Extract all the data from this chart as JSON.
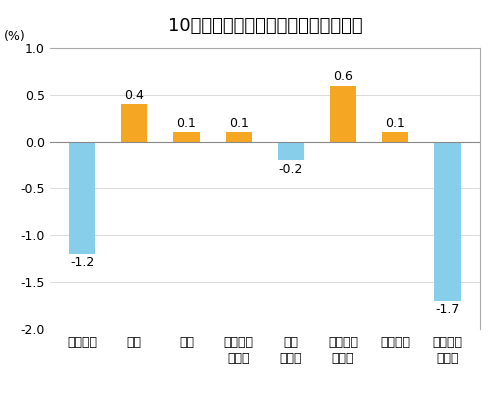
{
  "title": "10月份居民消费价格分类别环比涨跌幅",
  "ylabel": "(%)",
  "categories": [
    "食品烟酒",
    "衣着",
    "居住",
    "生活用品\n及服务",
    "交通\n和通信",
    "教育文化\n和娱乐",
    "医疗保健",
    "其他用品\n和服务"
  ],
  "values": [
    -1.2,
    0.4,
    0.1,
    0.1,
    -0.2,
    0.6,
    0.1,
    -1.7
  ],
  "bar_color_positive": "#F5A623",
  "bar_color_negative": "#87CEEB",
  "ylim": [
    -2.0,
    1.0
  ],
  "yticks": [
    -2.0,
    -1.5,
    -1.0,
    -0.5,
    0.0,
    0.5,
    1.0
  ],
  "ytick_labels": [
    "-2.0",
    "-1.5",
    "-1.0",
    "-0.5",
    "0.0",
    "0.5",
    "1.0"
  ],
  "background_color": "#ffffff",
  "title_fontsize": 13,
  "label_fontsize": 9,
  "tick_fontsize": 9,
  "value_fontsize": 9
}
